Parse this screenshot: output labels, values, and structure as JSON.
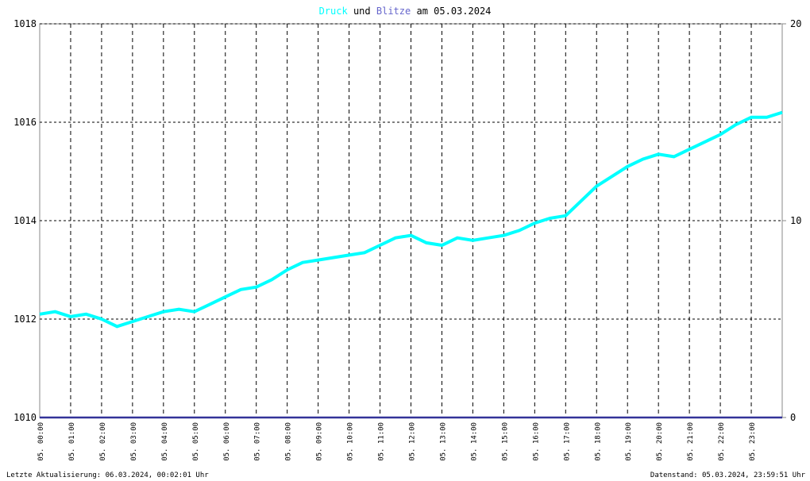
{
  "chart_data": {
    "type": "line",
    "title_words": [
      "und",
      "am 05.03.2024"
    ],
    "footer_left": "Letzte Aktualisierung: 06.03.2024, 00:02:01 Uhr",
    "footer_right": "Datenstand: 05.03.2024, 23:59:51 Uhr",
    "xlim": [
      0,
      24
    ],
    "xticks": [
      {
        "value": 0,
        "label": "05. 00:00"
      },
      {
        "value": 1,
        "label": "05. 01:00"
      },
      {
        "value": 2,
        "label": "05. 02:00"
      },
      {
        "value": 3,
        "label": "05. 03:00"
      },
      {
        "value": 4,
        "label": "05. 04:00"
      },
      {
        "value": 5,
        "label": "05. 05:00"
      },
      {
        "value": 6,
        "label": "05. 06:00"
      },
      {
        "value": 7,
        "label": "05. 07:00"
      },
      {
        "value": 8,
        "label": "05. 08:00"
      },
      {
        "value": 9,
        "label": "05. 09:00"
      },
      {
        "value": 10,
        "label": "05. 10:00"
      },
      {
        "value": 11,
        "label": "05. 11:00"
      },
      {
        "value": 12,
        "label": "05. 12:00"
      },
      {
        "value": 13,
        "label": "05. 13:00"
      },
      {
        "value": 14,
        "label": "05. 14:00"
      },
      {
        "value": 15,
        "label": "05. 15:00"
      },
      {
        "value": 16,
        "label": "05. 16:00"
      },
      {
        "value": 17,
        "label": "05. 17:00"
      },
      {
        "value": 18,
        "label": "05. 18:00"
      },
      {
        "value": 19,
        "label": "05. 19:00"
      },
      {
        "value": 20,
        "label": "05. 20:00"
      },
      {
        "value": 21,
        "label": "05. 21:00"
      },
      {
        "value": 22,
        "label": "05. 22:00"
      },
      {
        "value": 23,
        "label": "05. 23:00"
      }
    ],
    "ylim": [
      1010,
      1018
    ],
    "yticks": [
      1010,
      1012,
      1014,
      1016,
      1018
    ],
    "y2lim": [
      0,
      20
    ],
    "y2ticks": [
      0,
      10,
      20
    ],
    "grid": true,
    "series": [
      {
        "name": "Druck",
        "color": "#00ffff",
        "x": [
          0,
          0.5,
          1,
          1.5,
          2,
          2.5,
          3,
          3.5,
          4,
          4.5,
          5,
          5.5,
          6,
          6.5,
          7,
          7.5,
          8,
          8.5,
          9,
          9.5,
          10,
          10.5,
          11,
          11.5,
          12,
          12.5,
          13,
          13.5,
          14,
          14.5,
          15,
          15.5,
          16,
          16.5,
          17,
          17.5,
          18,
          18.5,
          19,
          19.5,
          20,
          20.5,
          21,
          21.5,
          22,
          22.5,
          23,
          23.5,
          24
        ],
        "values": [
          1012.1,
          1012.15,
          1012.05,
          1012.1,
          1012.0,
          1011.85,
          1011.95,
          1012.05,
          1012.15,
          1012.2,
          1012.15,
          1012.3,
          1012.45,
          1012.6,
          1012.65,
          1012.8,
          1013.0,
          1013.15,
          1013.2,
          1013.25,
          1013.3,
          1013.35,
          1013.5,
          1013.65,
          1013.7,
          1013.55,
          1013.5,
          1013.65,
          1013.6,
          1013.65,
          1013.7,
          1013.8,
          1013.95,
          1014.05,
          1014.1,
          1014.4,
          1014.7,
          1014.9,
          1015.1,
          1015.25,
          1015.35,
          1015.3,
          1015.45,
          1015.6,
          1015.75,
          1015.95,
          1016.1,
          1016.1,
          1016.2
        ]
      },
      {
        "name": "Blitze",
        "color": "#333399",
        "axis": "y2",
        "x": [
          0,
          24
        ],
        "values": [
          0,
          0
        ]
      }
    ]
  }
}
